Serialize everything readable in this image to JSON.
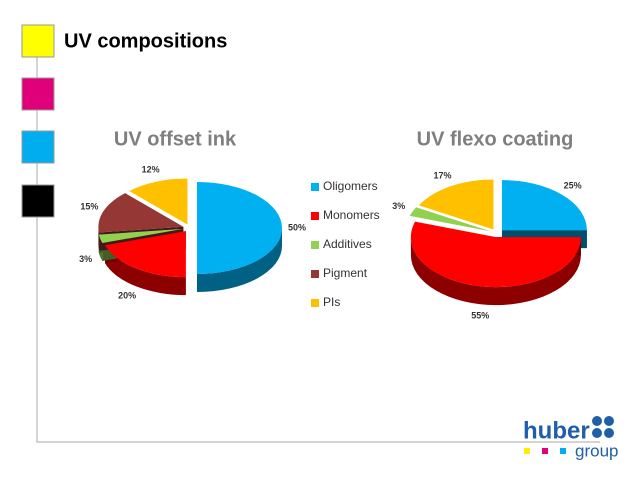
{
  "title": "UV compositions",
  "legend": [
    {
      "name": "Oligomers",
      "color": "#00b0f0"
    },
    {
      "name": "Monomers",
      "color": "#ff0000"
    },
    {
      "name": "Additives",
      "color": "#92d050"
    },
    {
      "name": "Pigment",
      "color": "#953735"
    },
    {
      "name": "PIs",
      "color": "#ffc000"
    }
  ],
  "chart_data": [
    {
      "type": "pie",
      "title": "UV offset ink",
      "values": [
        50,
        20,
        3,
        15,
        12
      ],
      "value_labels": [
        "50%",
        "20%",
        "3%",
        "15%",
        "12%"
      ]
    },
    {
      "type": "pie",
      "title": "UV flexo coating",
      "values": [
        25,
        55,
        3,
        null,
        17
      ],
      "value_labels": [
        "25%",
        "55%",
        "3%",
        null,
        "17%"
      ]
    }
  ],
  "logo": {
    "name": "huber",
    "tagline": "group"
  }
}
